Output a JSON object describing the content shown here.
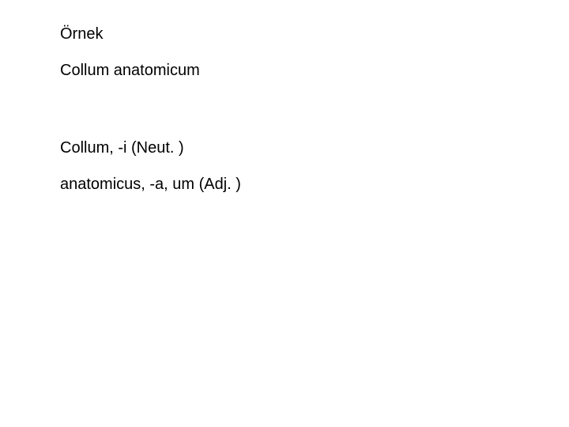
{
  "document": {
    "background_color": "#ffffff",
    "text_color": "#000000",
    "font_family": "Verdana, sans-serif",
    "font_size_pt": 15,
    "lines": {
      "l1": "Örnek",
      "l2": "Collum anatomicum",
      "l3": "Collum, -i (Neut. )",
      "l4": "anatomicus, -a, um (Adj. )"
    }
  }
}
